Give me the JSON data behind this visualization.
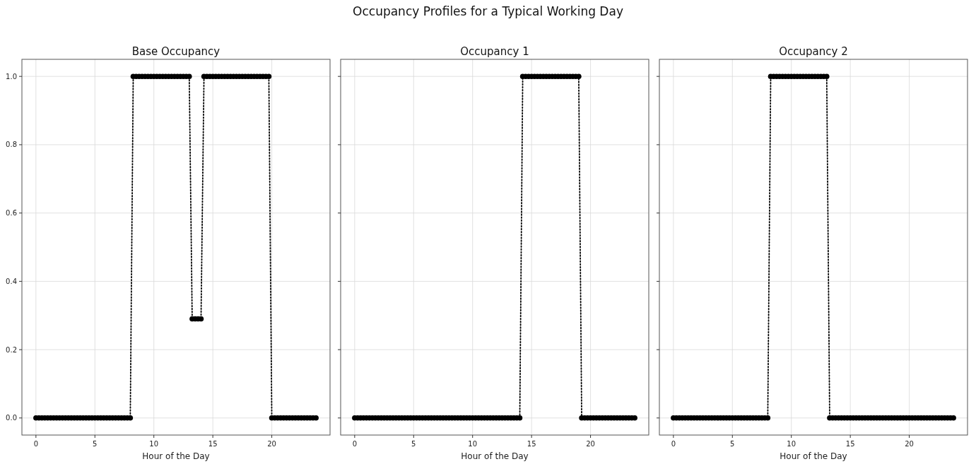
{
  "chart_data": [
    {
      "type": "line",
      "title": "Base Occupancy",
      "xlabel": "Hour of the Day",
      "annotations": [
        "Occupancy Profiles for a Typical Working Day"
      ],
      "x": [
        0,
        0.25,
        0.5,
        0.75,
        1,
        1.25,
        1.5,
        1.75,
        2,
        2.25,
        2.5,
        2.75,
        3,
        3.25,
        3.5,
        3.75,
        4,
        4.25,
        4.5,
        4.75,
        5,
        5.25,
        5.5,
        5.75,
        6,
        6.25,
        6.5,
        6.75,
        7,
        7.25,
        7.5,
        7.75,
        8,
        8.25,
        8.5,
        8.75,
        9,
        9.25,
        9.5,
        9.75,
        10,
        10.25,
        10.5,
        10.75,
        11,
        11.25,
        11.5,
        11.75,
        12,
        12.25,
        12.5,
        12.75,
        13,
        13.25,
        13.5,
        13.75,
        14,
        14.25,
        14.5,
        14.75,
        15,
        15.25,
        15.5,
        15.75,
        16,
        16.25,
        16.5,
        16.75,
        17,
        17.25,
        17.5,
        17.75,
        18,
        18.25,
        18.5,
        18.75,
        19,
        19.25,
        19.5,
        19.75,
        20,
        20.25,
        20.5,
        20.75,
        21,
        21.25,
        21.5,
        21.75,
        22,
        22.25,
        22.5,
        22.75,
        23,
        23.25,
        23.5,
        23.75
      ],
      "series": [
        {
          "color": "#000000",
          "values": [
            0,
            0,
            0,
            0,
            0,
            0,
            0,
            0,
            0,
            0,
            0,
            0,
            0,
            0,
            0,
            0,
            0,
            0,
            0,
            0,
            0,
            0,
            0,
            0,
            0,
            0,
            0,
            0,
            0,
            0,
            0,
            0,
            0,
            1,
            1,
            1,
            1,
            1,
            1,
            1,
            1,
            1,
            1,
            1,
            1,
            1,
            1,
            1,
            1,
            1,
            1,
            1,
            1,
            0.29,
            0.29,
            0.29,
            0.29,
            1,
            1,
            1,
            1,
            1,
            1,
            1,
            1,
            1,
            1,
            1,
            1,
            1,
            1,
            1,
            1,
            1,
            1,
            1,
            1,
            1,
            1,
            1,
            0,
            0,
            0,
            0,
            0,
            0,
            0,
            0,
            0,
            0,
            0,
            0,
            0,
            0,
            0,
            0
          ]
        }
      ],
      "xlim": [
        -1.19,
        24.94
      ],
      "xticks": [
        0,
        5,
        10,
        15,
        20
      ],
      "ylim": [
        -0.05,
        1.05
      ],
      "yticks": [
        {
          "value": 0,
          "label": "0.0"
        },
        0.2,
        0.4,
        0.6,
        0.8,
        {
          "value": 1,
          "label": "1.0"
        }
      ],
      "grid": true,
      "marker": "circle",
      "line_style": "dotted"
    },
    {
      "type": "line",
      "title": "Occupancy 1",
      "xlabel": "Hour of the Day",
      "x": [
        0,
        0.25,
        0.5,
        0.75,
        1,
        1.25,
        1.5,
        1.75,
        2,
        2.25,
        2.5,
        2.75,
        3,
        3.25,
        3.5,
        3.75,
        4,
        4.25,
        4.5,
        4.75,
        5,
        5.25,
        5.5,
        5.75,
        6,
        6.25,
        6.5,
        6.75,
        7,
        7.25,
        7.5,
        7.75,
        8,
        8.25,
        8.5,
        8.75,
        9,
        9.25,
        9.5,
        9.75,
        10,
        10.25,
        10.5,
        10.75,
        11,
        11.25,
        11.5,
        11.75,
        12,
        12.25,
        12.5,
        12.75,
        13,
        13.25,
        13.5,
        13.75,
        14,
        14.25,
        14.5,
        14.75,
        15,
        15.25,
        15.5,
        15.75,
        16,
        16.25,
        16.5,
        16.75,
        17,
        17.25,
        17.5,
        17.75,
        18,
        18.25,
        18.5,
        18.75,
        19,
        19.25,
        19.5,
        19.75,
        20,
        20.25,
        20.5,
        20.75,
        21,
        21.25,
        21.5,
        21.75,
        22,
        22.25,
        22.5,
        22.75,
        23,
        23.25,
        23.5,
        23.75
      ],
      "series": [
        {
          "color": "#000000",
          "values": [
            0,
            0,
            0,
            0,
            0,
            0,
            0,
            0,
            0,
            0,
            0,
            0,
            0,
            0,
            0,
            0,
            0,
            0,
            0,
            0,
            0,
            0,
            0,
            0,
            0,
            0,
            0,
            0,
            0,
            0,
            0,
            0,
            0,
            0,
            0,
            0,
            0,
            0,
            0,
            0,
            0,
            0,
            0,
            0,
            0,
            0,
            0,
            0,
            0,
            0,
            0,
            0,
            0,
            0,
            0,
            0,
            0,
            1,
            1,
            1,
            1,
            1,
            1,
            1,
            1,
            1,
            1,
            1,
            1,
            1,
            1,
            1,
            1,
            1,
            1,
            1,
            1,
            0,
            0,
            0,
            0,
            0,
            0,
            0,
            0,
            0,
            0,
            0,
            0,
            0,
            0,
            0,
            0,
            0,
            0,
            0
          ]
        }
      ],
      "xlim": [
        -1.19,
        24.94
      ],
      "xticks": [
        0,
        5,
        10,
        15,
        20
      ],
      "ylim": [
        -0.05,
        1.05
      ],
      "yticks": [
        0,
        0.2,
        0.4,
        0.6,
        0.8,
        1
      ],
      "tick_labels": "x",
      "grid": true,
      "marker": "circle",
      "line_style": "dotted"
    },
    {
      "type": "line",
      "title": "Occupancy 2",
      "xlabel": "Hour of the Day",
      "x": [
        0,
        0.25,
        0.5,
        0.75,
        1,
        1.25,
        1.5,
        1.75,
        2,
        2.25,
        2.5,
        2.75,
        3,
        3.25,
        3.5,
        3.75,
        4,
        4.25,
        4.5,
        4.75,
        5,
        5.25,
        5.5,
        5.75,
        6,
        6.25,
        6.5,
        6.75,
        7,
        7.25,
        7.5,
        7.75,
        8,
        8.25,
        8.5,
        8.75,
        9,
        9.25,
        9.5,
        9.75,
        10,
        10.25,
        10.5,
        10.75,
        11,
        11.25,
        11.5,
        11.75,
        12,
        12.25,
        12.5,
        12.75,
        13,
        13.25,
        13.5,
        13.75,
        14,
        14.25,
        14.5,
        14.75,
        15,
        15.25,
        15.5,
        15.75,
        16,
        16.25,
        16.5,
        16.75,
        17,
        17.25,
        17.5,
        17.75,
        18,
        18.25,
        18.5,
        18.75,
        19,
        19.25,
        19.5,
        19.75,
        20,
        20.25,
        20.5,
        20.75,
        21,
        21.25,
        21.5,
        21.75,
        22,
        22.25,
        22.5,
        22.75,
        23,
        23.25,
        23.5,
        23.75
      ],
      "series": [
        {
          "color": "#000000",
          "values": [
            0,
            0,
            0,
            0,
            0,
            0,
            0,
            0,
            0,
            0,
            0,
            0,
            0,
            0,
            0,
            0,
            0,
            0,
            0,
            0,
            0,
            0,
            0,
            0,
            0,
            0,
            0,
            0,
            0,
            0,
            0,
            0,
            0,
            1,
            1,
            1,
            1,
            1,
            1,
            1,
            1,
            1,
            1,
            1,
            1,
            1,
            1,
            1,
            1,
            1,
            1,
            1,
            1,
            0,
            0,
            0,
            0,
            0,
            0,
            0,
            0,
            0,
            0,
            0,
            0,
            0,
            0,
            0,
            0,
            0,
            0,
            0,
            0,
            0,
            0,
            0,
            0,
            0,
            0,
            0,
            0,
            0,
            0,
            0,
            0,
            0,
            0,
            0,
            0,
            0,
            0,
            0,
            0,
            0,
            0,
            0
          ]
        }
      ],
      "xlim": [
        -1.19,
        24.94
      ],
      "xticks": [
        0,
        5,
        10,
        15,
        20
      ],
      "ylim": [
        -0.05,
        1.05
      ],
      "yticks": [
        0,
        0.2,
        0.4,
        0.6,
        0.8,
        1
      ],
      "tick_labels": "x",
      "grid": true,
      "marker": "circle",
      "line_style": "dotted"
    }
  ]
}
